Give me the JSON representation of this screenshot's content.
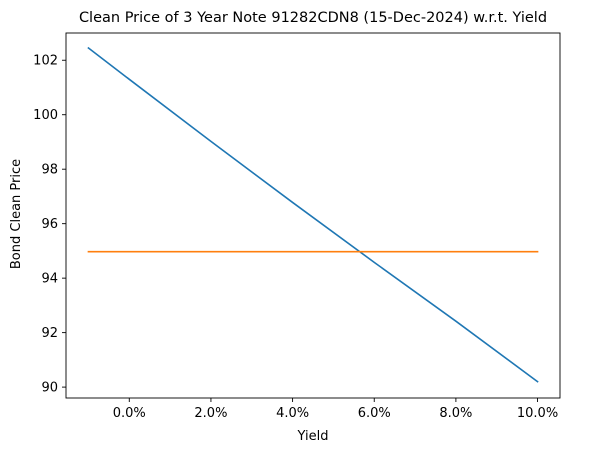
{
  "chart_data": {
    "type": "line",
    "title": "Clean Price of 3 Year Note 91282CDN8 (15-Dec-2024) w.r.t. Yield",
    "xlabel": "Yield",
    "ylabel": "Bond Clean Price",
    "xlim": [
      -0.0155,
      0.1055
    ],
    "ylim": [
      89.6,
      103.0
    ],
    "x_ticks": [
      0.0,
      0.02,
      0.04,
      0.06,
      0.08,
      0.1
    ],
    "x_tick_labels": [
      "0.0%",
      "2.0%",
      "4.0%",
      "6.0%",
      "8.0%",
      "10.0%"
    ],
    "y_ticks": [
      90,
      92,
      94,
      96,
      98,
      100,
      102
    ],
    "y_tick_labels": [
      "90",
      "92",
      "94",
      "96",
      "98",
      "100",
      "102"
    ],
    "grid": false,
    "legend": "none",
    "series": [
      {
        "color": "#1f77b4",
        "x": [
          -0.01,
          0.0,
          0.02,
          0.04,
          0.06,
          0.08,
          0.1
        ],
        "y": [
          102.45,
          101.3,
          99.02,
          96.78,
          94.58,
          92.42,
          90.2
        ]
      },
      {
        "color": "#ff7f0e",
        "x": [
          -0.01,
          0.1
        ],
        "y": [
          94.97,
          94.97
        ]
      }
    ]
  }
}
